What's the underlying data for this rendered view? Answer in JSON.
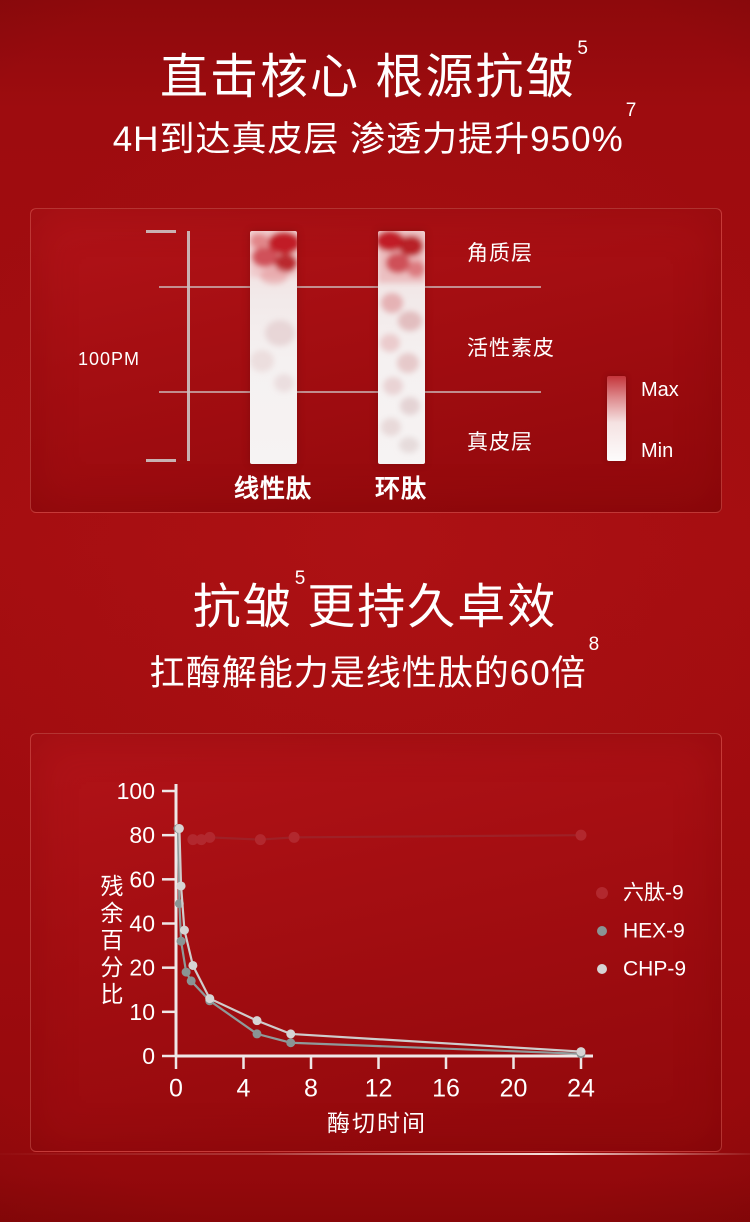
{
  "section1": {
    "title": "直击核心 根源抗皱",
    "title_sup": "5",
    "subtitle": "4H到达真皮层 渗透力提升950%",
    "subtitle_sup": "7"
  },
  "penetration": {
    "scale_label": "100PM",
    "bar_labels": [
      "线性肽",
      "环肽"
    ],
    "layer_labels": [
      "角质层",
      "活性素皮",
      "真皮层"
    ],
    "gradient_legend": {
      "max_label": "Max",
      "min_label": "Min"
    },
    "colors": {
      "stain_red": "#c11f26",
      "stain_pink": "#e0989c",
      "bar_base": "#f5f1f1"
    }
  },
  "section2": {
    "title_pre": "抗皱",
    "title_sup": "5",
    "title_post": "更持久卓效",
    "subtitle": "扛酶解能力是线性肽的60倍",
    "subtitle_sup": "8"
  },
  "chart_data": {
    "type": "line",
    "xlabel": "酶切时间",
    "ylabel": "残余百分比",
    "x_ticks": [
      0,
      4,
      8,
      12,
      16,
      20,
      24
    ],
    "y_ticks": [
      0,
      10,
      20,
      40,
      60,
      80,
      100
    ],
    "axis_note": "y axis nonlinear: listed ticks equally spaced",
    "legend_position": "right",
    "series": [
      {
        "name": "六肽-9",
        "color": "#b2282e",
        "line_color": "#9e2026",
        "points": [
          [
            1,
            78
          ],
          [
            1.5,
            78
          ],
          [
            2,
            79
          ],
          [
            5,
            78
          ],
          [
            7,
            79
          ],
          [
            24,
            80
          ]
        ]
      },
      {
        "name": "HEX-9",
        "color": "#8a9494",
        "line_color": "#8f9a9a",
        "points": [
          [
            0.12,
            83
          ],
          [
            0.2,
            49
          ],
          [
            0.3,
            32
          ],
          [
            0.6,
            19
          ],
          [
            0.9,
            17
          ],
          [
            2,
            12.5
          ],
          [
            4.8,
            5
          ],
          [
            6.8,
            3
          ],
          [
            24,
            0.5
          ]
        ]
      },
      {
        "name": "CHP-9",
        "color": "#d6d4d4",
        "line_color": "#cfcccc",
        "points": [
          [
            0.2,
            83
          ],
          [
            0.3,
            57
          ],
          [
            0.5,
            37
          ],
          [
            1,
            21
          ],
          [
            2,
            13
          ],
          [
            4.8,
            8
          ],
          [
            6.8,
            5
          ],
          [
            24,
            1
          ]
        ]
      }
    ]
  }
}
